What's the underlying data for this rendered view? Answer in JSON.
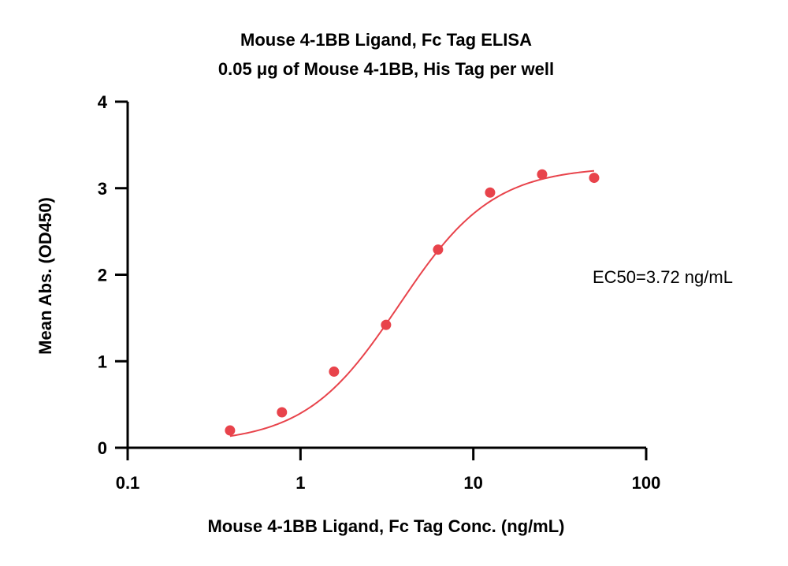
{
  "chart_data": {
    "type": "scatter",
    "title": "Mouse 4-1BB Ligand, Fc Tag ELISA",
    "subtitle": "0.05 μg of Mouse 4-1BB, His Tag per well",
    "xlabel": "Mouse 4-1BB Ligand, Fc Tag Conc. (ng/mL)",
    "ylabel": "Mean Abs. (OD450)",
    "x_scale": "log",
    "xlim": [
      0.1,
      100
    ],
    "ylim": [
      0,
      4
    ],
    "x_ticks": [
      0.1,
      1,
      10,
      100
    ],
    "x_tick_labels": [
      "0.1",
      "1",
      "10",
      "100"
    ],
    "y_ticks": [
      0,
      1,
      2,
      3,
      4
    ],
    "y_tick_labels": [
      "0",
      "1",
      "2",
      "3",
      "4"
    ],
    "grid": false,
    "series": [
      {
        "color": "#e8434b",
        "x": [
          0.391,
          0.781,
          1.563,
          3.125,
          6.25,
          12.5,
          25,
          50
        ],
        "y": [
          0.2,
          0.41,
          0.88,
          1.42,
          2.29,
          2.95,
          3.16,
          3.12
        ]
      }
    ],
    "fit_curve": {
      "model": "4PL",
      "bottom": 0.05,
      "top": 3.25,
      "ec50": 3.72,
      "hill": 1.6,
      "x_range": [
        0.391,
        50
      ],
      "color": "#e8434b"
    },
    "annotations": [
      "EC50=3.72 ng/mL"
    ]
  }
}
